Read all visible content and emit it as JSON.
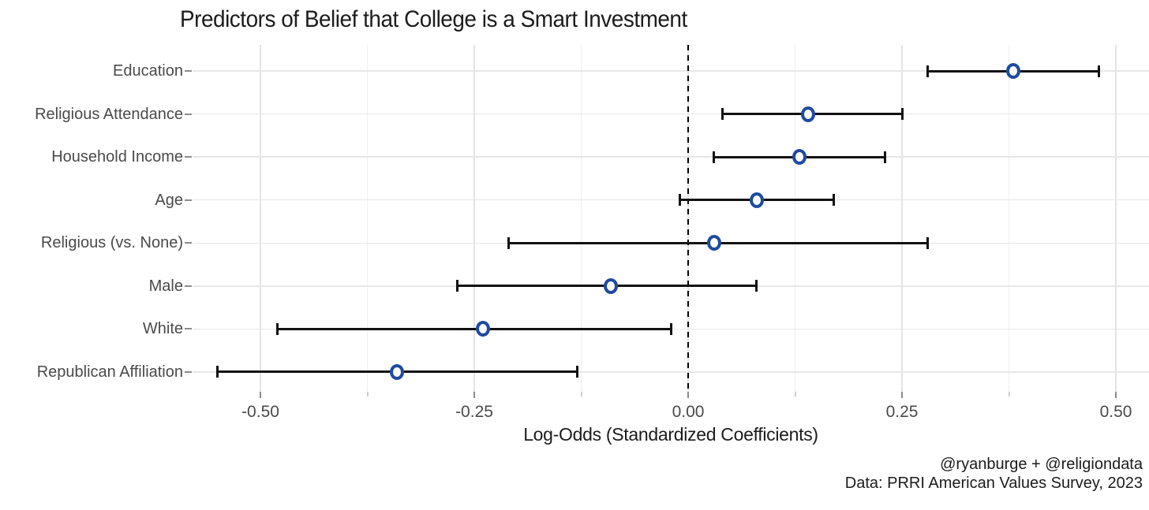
{
  "chart_data": {
    "type": "scatter",
    "subtype": "coefficient-plot-with-error-bars",
    "title": "Predictors of Belief that College is a Smart Investment",
    "xlabel": "Log-Odds (Standardized Coefficients)",
    "ylabel": "",
    "categories": [
      "Education",
      "Religious Attendance",
      "Household Income",
      "Age",
      "Religious (vs. None)",
      "Male",
      "White",
      "Republican Affiliation"
    ],
    "series": [
      {
        "name": "Standardized log-odds coefficient",
        "values": [
          0.38,
          0.14,
          0.13,
          0.08,
          0.03,
          -0.09,
          -0.24,
          -0.34
        ],
        "ci_low": [
          0.28,
          0.04,
          0.03,
          -0.01,
          -0.21,
          -0.27,
          -0.48,
          -0.55
        ],
        "ci_high": [
          0.48,
          0.25,
          0.23,
          0.17,
          0.28,
          0.08,
          -0.02,
          -0.13
        ]
      }
    ],
    "x_ticks": [
      {
        "value": -0.5,
        "label": "-0.50"
      },
      {
        "value": -0.25,
        "label": "-0.25"
      },
      {
        "value": 0,
        "label": "0.00"
      },
      {
        "value": 0.25,
        "label": "0.25"
      },
      {
        "value": 0.5,
        "label": "0.50"
      }
    ],
    "x_minor_ticks": [
      -0.375,
      -0.125,
      0.125,
      0.375
    ],
    "xlim": [
      -0.58,
      0.54
    ],
    "reference_line_x": 0,
    "grid": "on",
    "legend": "none",
    "point_color": "#1f4aa0",
    "errorbar_color": "#111111"
  },
  "caption": {
    "line1": "@ryanburge + @religiondata",
    "line2": "Data: PRRI American Values Survey, 2023"
  }
}
